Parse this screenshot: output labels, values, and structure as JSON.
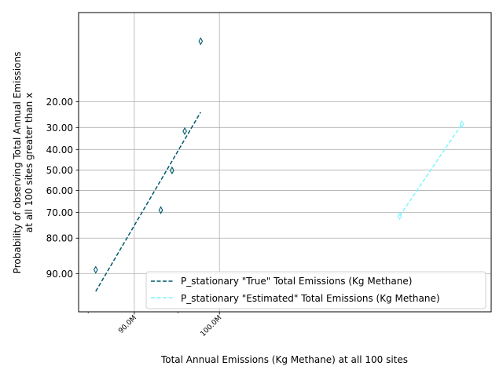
{
  "chart_data": {
    "type": "scatter",
    "title": "",
    "xlabel": "Total Annual Emissions (Kg Methane) at all 100 sites",
    "ylabel_lines": [
      "Probability of observing Total Annual Emissions",
      "at all 100 sites greater than x"
    ],
    "x_scale": "log",
    "y_scale": "normal-probability",
    "xlim": [
      84000000,
      140000000
    ],
    "ylim": [
      96.0,
      2.6
    ],
    "x_ticks": [
      {
        "value": 90000000,
        "label": "90.0M"
      },
      {
        "value": 100000000,
        "label": "100.0M"
      }
    ],
    "x_minor_ticks": [
      85000000,
      95000000
    ],
    "y_ticks": [
      {
        "value": 20,
        "label": "20.00"
      },
      {
        "value": 30,
        "label": "30.00"
      },
      {
        "value": 40,
        "label": "40.00"
      },
      {
        "value": 50,
        "label": "50.00"
      },
      {
        "value": 60,
        "label": "60.00"
      },
      {
        "value": 70,
        "label": "70.00"
      },
      {
        "value": 80,
        "label": "80.00"
      },
      {
        "value": 90,
        "label": "90.00"
      }
    ],
    "grid": true,
    "legend_position": "lower-right",
    "series": [
      {
        "name": "P_stationary \"True\" Total Emissions (Kg Methane)",
        "color": "#00586e",
        "line_style": "dashed",
        "marker": "thin_diamond",
        "points": [
          {
            "x": 85800000,
            "y": 89.1
          },
          {
            "x": 93000000,
            "y": 69.0
          },
          {
            "x": 94300000,
            "y": 50.2
          },
          {
            "x": 95800000,
            "y": 31.6
          },
          {
            "x": 97700000,
            "y": 5.6
          }
        ],
        "fit_line": [
          {
            "x": 85800000,
            "y": 93.3
          },
          {
            "x": 97700000,
            "y": 23.8
          }
        ]
      },
      {
        "name": "P_stationary \"Estimated\" Total Emissions (Kg Methane)",
        "color": "#7ff6ff",
        "line_style": "dashed",
        "marker": "thin_diamond",
        "points": [
          {
            "x": 125000000,
            "y": 71.5
          },
          {
            "x": 135000000,
            "y": 28.6
          }
        ],
        "fit_line": [
          {
            "x": 125000000,
            "y": 71.5
          },
          {
            "x": 135000000,
            "y": 28.6
          }
        ]
      }
    ]
  }
}
